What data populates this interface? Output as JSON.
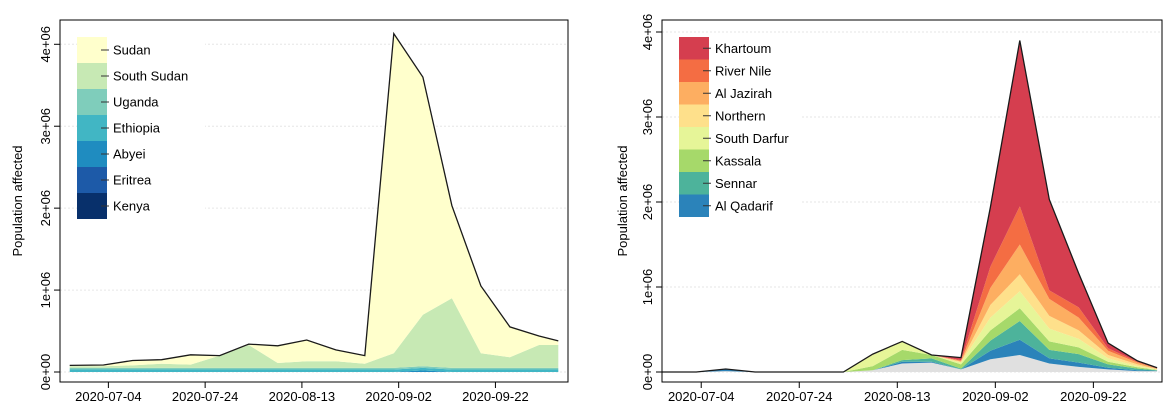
{
  "chart_data": [
    {
      "type": "area",
      "stacked": true,
      "x": [
        "2020-06-26",
        "2020-07-03",
        "2020-07-09",
        "2020-07-15",
        "2020-07-21",
        "2020-07-27",
        "2020-08-02",
        "2020-08-08",
        "2020-08-14",
        "2020-08-20",
        "2020-08-26",
        "2020-09-01",
        "2020-09-07",
        "2020-09-13",
        "2020-09-19",
        "2020-09-25",
        "2020-10-01",
        "2020-10-05"
      ],
      "x_ticks": [
        "2020-07-04",
        "2020-07-24",
        "2020-08-13",
        "2020-09-02",
        "2020-09-22"
      ],
      "ylabel": "Population affected",
      "y_ticks": [
        "0e+00",
        "1e+06",
        "2e+06",
        "3e+06",
        "4e+06"
      ],
      "ylim": [
        0,
        4150000
      ],
      "grid": true,
      "legend_position": "top-left",
      "series": [
        {
          "name": "Kenya",
          "color": "#08306b",
          "values": [
            0,
            0,
            0,
            0,
            0,
            0,
            0,
            0,
            0,
            0,
            0,
            0,
            0,
            0,
            0,
            0,
            0,
            0
          ]
        },
        {
          "name": "Eritrea",
          "color": "#1d5aa8",
          "values": [
            0,
            0,
            0,
            0,
            0,
            0,
            0,
            0,
            0,
            0,
            0,
            0,
            0,
            0,
            0,
            0,
            0,
            0
          ]
        },
        {
          "name": "Abyei",
          "color": "#1f8cc0",
          "values": [
            0,
            0,
            0,
            0,
            0,
            0,
            0,
            0,
            0,
            0,
            0,
            0,
            20000,
            0,
            0,
            0,
            0,
            0
          ]
        },
        {
          "name": "Ethiopia",
          "color": "#41b6c4",
          "values": [
            30000,
            30000,
            30000,
            30000,
            30000,
            30000,
            30000,
            30000,
            30000,
            30000,
            30000,
            30000,
            30000,
            30000,
            30000,
            30000,
            30000,
            30000
          ]
        },
        {
          "name": "Uganda",
          "color": "#7fcdbb",
          "values": [
            20000,
            20000,
            20000,
            20000,
            20000,
            20000,
            20000,
            20000,
            20000,
            20000,
            20000,
            20000,
            20000,
            20000,
            20000,
            20000,
            20000,
            20000
          ]
        },
        {
          "name": "South Sudan",
          "color": "#c7e9b4",
          "values": [
            20000,
            20000,
            30000,
            50000,
            40000,
            150000,
            280000,
            60000,
            80000,
            80000,
            50000,
            180000,
            630000,
            850000,
            180000,
            130000,
            280000,
            280000
          ]
        },
        {
          "name": "Sudan",
          "color": "#ffffcc",
          "values": [
            10000,
            15000,
            60000,
            50000,
            120000,
            0,
            10000,
            210000,
            260000,
            140000,
            100000,
            3900000,
            2900000,
            1130000,
            820000,
            370000,
            110000,
            50000
          ]
        }
      ]
    },
    {
      "type": "area",
      "stacked": true,
      "x": [
        "2020-06-26",
        "2020-07-03",
        "2020-07-09",
        "2020-07-15",
        "2020-07-21",
        "2020-07-27",
        "2020-08-02",
        "2020-08-08",
        "2020-08-14",
        "2020-08-20",
        "2020-08-26",
        "2020-09-01",
        "2020-09-07",
        "2020-09-13",
        "2020-09-19",
        "2020-09-25",
        "2020-10-01",
        "2020-10-05"
      ],
      "x_ticks": [
        "2020-07-04",
        "2020-07-24",
        "2020-08-13",
        "2020-09-02",
        "2020-09-22"
      ],
      "ylabel": "Population affected",
      "y_ticks": [
        "0e+00",
        "1e+06",
        "2e+06",
        "3e+06",
        "4e+06"
      ],
      "ylim": [
        0,
        4000000
      ],
      "grid": true,
      "legend_position": "top-left",
      "series": [
        {
          "name": "",
          "color": "#e0e0e0",
          "values": [
            0,
            0,
            10000,
            0,
            0,
            0,
            0,
            20000,
            100000,
            110000,
            30000,
            150000,
            200000,
            100000,
            60000,
            30000,
            10000,
            10000
          ]
        },
        {
          "name": "Al Qadarif",
          "color": "#2b83ba",
          "values": [
            0,
            0,
            20000,
            0,
            0,
            0,
            0,
            0,
            20000,
            10000,
            0,
            100000,
            180000,
            60000,
            50000,
            20000,
            10000,
            5000
          ]
        },
        {
          "name": "Sennar",
          "color": "#4db39b",
          "values": [
            0,
            0,
            5000,
            0,
            0,
            0,
            0,
            0,
            20000,
            40000,
            10000,
            120000,
            220000,
            100000,
            100000,
            40000,
            20000,
            5000
          ]
        },
        {
          "name": "Kassala",
          "color": "#a6d96a",
          "values": [
            0,
            0,
            0,
            0,
            0,
            0,
            0,
            50000,
            120000,
            40000,
            50000,
            120000,
            150000,
            100000,
            80000,
            30000,
            15000,
            5000
          ]
        },
        {
          "name": "South Darfur",
          "color": "#e6f598",
          "values": [
            0,
            0,
            0,
            0,
            0,
            0,
            0,
            130000,
            100000,
            0,
            20000,
            150000,
            200000,
            150000,
            100000,
            40000,
            15000,
            5000
          ]
        },
        {
          "name": "Northern",
          "color": "#fee08b",
          "values": [
            0,
            0,
            0,
            0,
            0,
            0,
            0,
            10000,
            0,
            0,
            10000,
            150000,
            200000,
            150000,
            100000,
            40000,
            20000,
            5000
          ]
        },
        {
          "name": "Al Jazirah",
          "color": "#fdae61",
          "values": [
            0,
            0,
            0,
            0,
            0,
            0,
            0,
            0,
            0,
            0,
            10000,
            200000,
            350000,
            200000,
            150000,
            50000,
            20000,
            5000
          ]
        },
        {
          "name": "River Nile",
          "color": "#f46d43",
          "values": [
            0,
            0,
            0,
            0,
            0,
            0,
            0,
            0,
            0,
            0,
            10000,
            250000,
            450000,
            100000,
            120000,
            30000,
            10000,
            5000
          ]
        },
        {
          "name": "Khartoum",
          "color": "#d53e4f",
          "values": [
            0,
            0,
            0,
            0,
            0,
            0,
            0,
            0,
            0,
            0,
            30000,
            700000,
            1950000,
            1070000,
            400000,
            60000,
            10000,
            5000
          ]
        }
      ]
    }
  ]
}
